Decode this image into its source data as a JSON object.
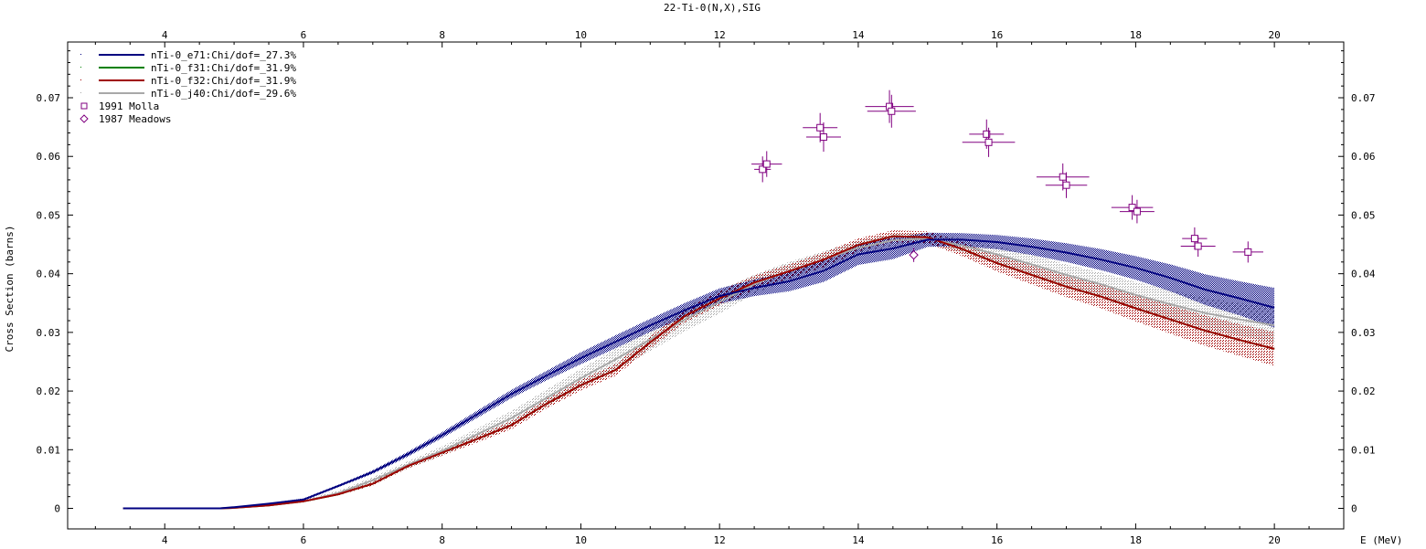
{
  "chart_data": {
    "type": "line",
    "title": "22-Ti-0(N,X),SIG",
    "xlabel": "E (MeV)",
    "ylabel": "Cross Section (barns)",
    "xlim": [
      2.6,
      21.0
    ],
    "ylim": [
      -0.0035,
      0.0795
    ],
    "xticks": [
      4,
      6,
      8,
      10,
      12,
      14,
      16,
      18,
      20
    ],
    "yticks": [
      0,
      0.01,
      0.02,
      0.03,
      0.04,
      0.05,
      0.06,
      0.07
    ],
    "xtick_labels": [
      "4",
      "6",
      "8",
      "10",
      "12",
      "14",
      "16",
      "18",
      "20"
    ],
    "ytick_labels": [
      "0",
      "0.01",
      "0.02",
      "0.03",
      "0.04",
      "0.05",
      "0.06",
      "0.07"
    ],
    "grid": false,
    "legend_position": "top-left",
    "series": [
      {
        "name": "nTi-0_e71:Chi/dof=_27.3%",
        "color": "#000080",
        "band": "dense",
        "x": [
          3.4,
          4.0,
          4.8,
          5.0,
          5.5,
          6.0,
          6.5,
          7.0,
          7.5,
          8.0,
          8.5,
          9.0,
          9.5,
          10.0,
          10.5,
          11.0,
          11.5,
          12.0,
          12.5,
          13.0,
          13.5,
          14.0,
          14.5,
          15.0,
          15.5,
          16.0,
          16.5,
          17.0,
          17.5,
          18.0,
          18.5,
          19.0,
          19.5,
          20.0
        ],
        "y": [
          0.0,
          0.0,
          0.0,
          0.0002,
          0.0008,
          0.0015,
          0.0038,
          0.0062,
          0.0092,
          0.0125,
          0.016,
          0.0195,
          0.0226,
          0.0256,
          0.0284,
          0.0312,
          0.0338,
          0.0362,
          0.0376,
          0.0387,
          0.0405,
          0.0433,
          0.0443,
          0.0458,
          0.0458,
          0.0454,
          0.0446,
          0.0436,
          0.0424,
          0.041,
          0.0393,
          0.0373,
          0.0358,
          0.0342
        ],
        "band_upper": [
          0.0,
          0.0,
          0.0,
          0.0003,
          0.0009,
          0.0017,
          0.004,
          0.0065,
          0.0096,
          0.013,
          0.0166,
          0.0202,
          0.0234,
          0.0266,
          0.0295,
          0.0323,
          0.035,
          0.0375,
          0.039,
          0.0404,
          0.0424,
          0.0451,
          0.0461,
          0.047,
          0.0469,
          0.0466,
          0.046,
          0.0452,
          0.0442,
          0.043,
          0.0416,
          0.0399,
          0.0387,
          0.0376
        ],
        "band_lower": [
          0.0,
          0.0,
          0.0,
          0.0001,
          0.0007,
          0.0013,
          0.0036,
          0.0059,
          0.0088,
          0.012,
          0.0154,
          0.0188,
          0.0218,
          0.0246,
          0.0273,
          0.0301,
          0.0326,
          0.0349,
          0.0362,
          0.037,
          0.0386,
          0.0415,
          0.0425,
          0.0446,
          0.0447,
          0.0442,
          0.0432,
          0.042,
          0.0406,
          0.039,
          0.037,
          0.0347,
          0.0329,
          0.0308
        ]
      },
      {
        "name": "nTi-0_f31:Chi/dof=_31.9%",
        "color": "#008000",
        "band": "none",
        "x": [
          3.4,
          4.0,
          4.8,
          5.0,
          5.5,
          6.0,
          6.5,
          7.0,
          7.5,
          8.0,
          8.5,
          9.0,
          9.5,
          10.0,
          10.5,
          11.0,
          11.5,
          12.0,
          12.5,
          13.0,
          13.5,
          14.0,
          14.5,
          15.0,
          15.5,
          16.0,
          16.5,
          17.0,
          17.5,
          18.0,
          18.5,
          19.0,
          19.5,
          20.0
        ],
        "y": [
          0.0,
          0.0,
          0.0,
          0.0001,
          0.0005,
          0.0012,
          0.0024,
          0.0042,
          0.0072,
          0.0095,
          0.0118,
          0.0142,
          0.0178,
          0.021,
          0.0236,
          0.0283,
          0.0328,
          0.0358,
          0.0385,
          0.0404,
          0.0424,
          0.0449,
          0.0464,
          0.0462,
          0.0442,
          0.0418,
          0.0398,
          0.0378,
          0.0361,
          0.0341,
          0.0322,
          0.0303,
          0.0287,
          0.0272
        ]
      },
      {
        "name": "nTi-0_f32:Chi/dof=_31.9%",
        "color": "#a00000",
        "band": "sparse",
        "x": [
          3.4,
          4.0,
          4.8,
          5.0,
          5.5,
          6.0,
          6.5,
          7.0,
          7.5,
          8.0,
          8.5,
          9.0,
          9.5,
          10.0,
          10.5,
          11.0,
          11.5,
          12.0,
          12.5,
          13.0,
          13.5,
          14.0,
          14.5,
          15.0,
          15.5,
          16.0,
          16.5,
          17.0,
          17.5,
          18.0,
          18.5,
          19.0,
          19.5,
          20.0
        ],
        "y": [
          0.0,
          0.0,
          0.0,
          0.0001,
          0.0005,
          0.0012,
          0.0024,
          0.0042,
          0.0072,
          0.0095,
          0.0118,
          0.0142,
          0.0178,
          0.021,
          0.0236,
          0.0283,
          0.0328,
          0.0358,
          0.0385,
          0.0404,
          0.0424,
          0.0449,
          0.0464,
          0.0462,
          0.0442,
          0.0418,
          0.0398,
          0.0378,
          0.0361,
          0.0341,
          0.0322,
          0.0303,
          0.0287,
          0.0272
        ],
        "band_upper": [
          0.0,
          0.0,
          0.0,
          0.0001,
          0.0006,
          0.0013,
          0.0026,
          0.0045,
          0.0076,
          0.01,
          0.0124,
          0.0149,
          0.0186,
          0.0219,
          0.0246,
          0.0293,
          0.0339,
          0.037,
          0.0397,
          0.0416,
          0.0436,
          0.046,
          0.0474,
          0.0472,
          0.0454,
          0.0432,
          0.0414,
          0.0396,
          0.0381,
          0.0363,
          0.0346,
          0.0329,
          0.0314,
          0.0301
        ],
        "band_lower": [
          0.0,
          0.0,
          0.0,
          0.0001,
          0.0004,
          0.0011,
          0.0022,
          0.0039,
          0.0068,
          0.009,
          0.0112,
          0.0135,
          0.017,
          0.0201,
          0.0226,
          0.0273,
          0.0317,
          0.0346,
          0.0373,
          0.0392,
          0.0412,
          0.0438,
          0.0454,
          0.0452,
          0.043,
          0.0404,
          0.0382,
          0.036,
          0.0341,
          0.0319,
          0.0298,
          0.0277,
          0.026,
          0.0243
        ]
      },
      {
        "name": "nTi-0_j40:Chi/dof=_29.6%",
        "color": "#a8a8a8",
        "band": "light",
        "x": [
          3.4,
          4.0,
          4.8,
          5.0,
          5.5,
          6.0,
          6.5,
          7.0,
          7.5,
          8.0,
          8.5,
          9.0,
          9.5,
          10.0,
          10.5,
          11.0,
          11.5,
          12.0,
          12.5,
          13.0,
          13.5,
          14.0,
          14.5,
          15.0,
          15.5,
          16.0,
          16.5,
          17.0,
          17.5,
          18.0,
          18.5,
          19.0,
          19.5,
          20.0
        ],
        "y": [
          0.0,
          0.0,
          0.0,
          0.0001,
          0.0005,
          0.0012,
          0.0026,
          0.0048,
          0.0074,
          0.0098,
          0.0126,
          0.0154,
          0.0188,
          0.0222,
          0.0254,
          0.0288,
          0.0322,
          0.0352,
          0.0382,
          0.0405,
          0.0424,
          0.0444,
          0.0457,
          0.046,
          0.0448,
          0.0433,
          0.0416,
          0.0398,
          0.0382,
          0.0364,
          0.0348,
          0.0333,
          0.0322,
          0.0312
        ],
        "band_upper": [
          0.0,
          0.0,
          0.0,
          0.0002,
          0.0007,
          0.0015,
          0.003,
          0.0053,
          0.008,
          0.0106,
          0.0136,
          0.0166,
          0.0202,
          0.0238,
          0.0272,
          0.0308,
          0.0342,
          0.0372,
          0.0398,
          0.042,
          0.0438,
          0.0456,
          0.0467,
          0.047,
          0.046,
          0.0447,
          0.0432,
          0.0416,
          0.0402,
          0.0386,
          0.0372,
          0.0359,
          0.035,
          0.0342
        ],
        "band_lower": [
          0.0,
          0.0,
          0.0,
          0.0001,
          0.0004,
          0.001,
          0.0022,
          0.0043,
          0.0068,
          0.009,
          0.0116,
          0.0142,
          0.0174,
          0.0206,
          0.0236,
          0.0268,
          0.0302,
          0.0332,
          0.0366,
          0.039,
          0.041,
          0.0432,
          0.0447,
          0.045,
          0.0436,
          0.0419,
          0.04,
          0.038,
          0.0362,
          0.0342,
          0.0324,
          0.0307,
          0.0294,
          0.0282
        ]
      }
    ],
    "experimental": [
      {
        "name": "1991 Molla",
        "marker": "square",
        "color": "#800080",
        "points": [
          {
            "x": 12.62,
            "y": 0.0578,
            "dx": 0.12,
            "dy": 0.0022
          },
          {
            "x": 12.68,
            "y": 0.0587,
            "dx": 0.22,
            "dy": 0.0022
          },
          {
            "x": 13.45,
            "y": 0.0649,
            "dx": 0.25,
            "dy": 0.0025
          },
          {
            "x": 13.5,
            "y": 0.0633,
            "dx": 0.25,
            "dy": 0.0025
          },
          {
            "x": 14.45,
            "y": 0.0685,
            "dx": 0.35,
            "dy": 0.0028
          },
          {
            "x": 14.48,
            "y": 0.0677,
            "dx": 0.35,
            "dy": 0.0028
          },
          {
            "x": 15.85,
            "y": 0.0638,
            "dx": 0.25,
            "dy": 0.0025
          },
          {
            "x": 15.88,
            "y": 0.0624,
            "dx": 0.38,
            "dy": 0.0025
          },
          {
            "x": 16.95,
            "y": 0.0565,
            "dx": 0.38,
            "dy": 0.0023
          },
          {
            "x": 17.0,
            "y": 0.0551,
            "dx": 0.3,
            "dy": 0.0022
          },
          {
            "x": 17.95,
            "y": 0.0513,
            "dx": 0.3,
            "dy": 0.0021
          },
          {
            "x": 18.02,
            "y": 0.0506,
            "dx": 0.25,
            "dy": 0.002
          },
          {
            "x": 18.85,
            "y": 0.046,
            "dx": 0.18,
            "dy": 0.0019
          },
          {
            "x": 18.9,
            "y": 0.0447,
            "dx": 0.25,
            "dy": 0.0018
          },
          {
            "x": 19.62,
            "y": 0.0437,
            "dx": 0.22,
            "dy": 0.0018
          }
        ]
      },
      {
        "name": "1987 Meadows",
        "marker": "diamond",
        "color": "#800080",
        "points": [
          {
            "x": 14.8,
            "y": 0.0432,
            "dx": 0.0,
            "dy": 0.0012
          }
        ]
      }
    ]
  }
}
